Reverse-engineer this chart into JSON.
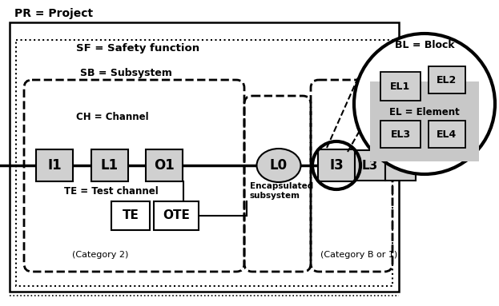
{
  "bg_color": "#ffffff",
  "box_fill": "#d0d0d0",
  "box_edge": "#555555",
  "title_pr": "PR = Project",
  "title_sf": "SF = Safety function",
  "title_sb": "SB = Subsystem",
  "title_ch": "CH = Channel",
  "title_te": "TE = Test channel",
  "label_enc": "Encapsulated\nsubsystem",
  "label_cat2": "(Category 2)",
  "label_catb": "(Category B or 1)",
  "label_bl": "BL = Block",
  "label_el": "EL = Element",
  "figw": 6.23,
  "figh": 3.83,
  "dpi": 100
}
